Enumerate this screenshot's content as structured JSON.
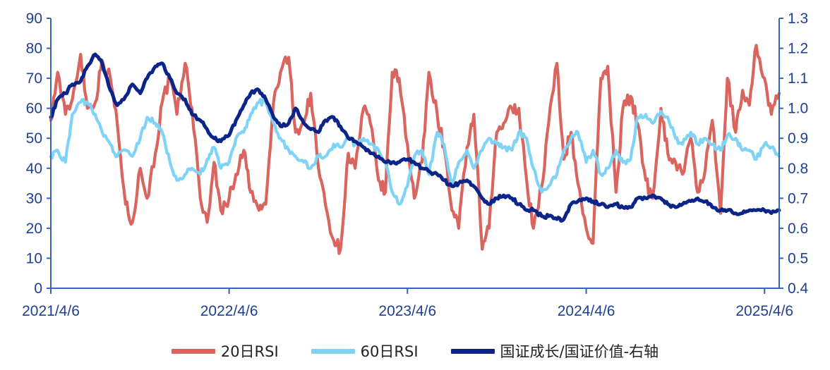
{
  "chart_data": {
    "type": "line",
    "title": "",
    "xlabel": "",
    "ylabel": "",
    "x_ticks": [
      "2021/4/6",
      "2022/4/6",
      "2023/4/6",
      "2024/4/6",
      "2025/4/6"
    ],
    "x_range": [
      "2021-04-06",
      "2025-05-06"
    ],
    "ylim": [
      0,
      90
    ],
    "y_ticks": [
      "0",
      "10",
      "20",
      "30",
      "40",
      "50",
      "60",
      "70",
      "80",
      "90"
    ],
    "y2lim": [
      0.4,
      1.3
    ],
    "y2_ticks": [
      "0.4",
      "0.5",
      "0.6",
      "0.7",
      "0.8",
      "0.9",
      "1.0",
      "1.1",
      "1.2",
      "1.3"
    ],
    "grid": false,
    "legend_position": "bottom",
    "series": [
      {
        "name": "20日RSI",
        "axis": "left",
        "color": "#d9655e",
        "x": [
          "2021-04-06",
          "2021-04-20",
          "2021-05-06",
          "2021-05-20",
          "2021-06-06",
          "2021-06-20",
          "2021-07-06",
          "2021-07-20",
          "2021-08-06",
          "2021-08-20",
          "2021-09-06",
          "2021-09-20",
          "2021-10-06",
          "2021-10-20",
          "2021-11-06",
          "2021-11-20",
          "2021-12-06",
          "2021-12-20",
          "2022-01-06",
          "2022-01-20",
          "2022-02-06",
          "2022-02-20",
          "2022-03-06",
          "2022-03-20",
          "2022-04-06",
          "2022-04-20",
          "2022-05-06",
          "2022-05-20",
          "2022-06-06",
          "2022-06-20",
          "2022-07-06",
          "2022-07-20",
          "2022-08-06",
          "2022-08-20",
          "2022-09-06",
          "2022-09-20",
          "2022-10-06",
          "2022-10-20",
          "2022-11-06",
          "2022-11-20",
          "2022-12-06",
          "2022-12-20",
          "2023-01-06",
          "2023-01-20",
          "2023-02-06",
          "2023-02-20",
          "2023-03-06",
          "2023-03-20",
          "2023-04-06",
          "2023-04-20",
          "2023-05-06",
          "2023-05-20",
          "2023-06-06",
          "2023-06-20",
          "2023-07-06",
          "2023-07-20",
          "2023-08-06",
          "2023-08-20",
          "2023-09-06",
          "2023-09-20",
          "2023-10-06",
          "2023-10-20",
          "2023-11-06",
          "2023-11-20",
          "2023-12-06",
          "2023-12-20",
          "2024-01-06",
          "2024-01-20",
          "2024-02-06",
          "2024-02-20",
          "2024-03-06",
          "2024-03-20",
          "2024-04-06",
          "2024-04-20",
          "2024-05-06",
          "2024-05-20",
          "2024-06-06",
          "2024-06-20",
          "2024-07-06",
          "2024-07-20",
          "2024-08-06",
          "2024-08-20",
          "2024-09-06",
          "2024-09-20",
          "2024-10-06",
          "2024-10-20",
          "2024-11-06",
          "2024-11-20",
          "2024-12-06",
          "2024-12-20",
          "2025-01-06",
          "2025-01-20",
          "2025-02-06",
          "2025-02-20",
          "2025-03-06",
          "2025-03-20",
          "2025-04-06",
          "2025-04-20",
          "2025-05-06"
        ],
        "values": [
          56,
          72,
          58,
          63,
          78,
          60,
          62,
          76,
          70,
          55,
          28,
          22,
          40,
          30,
          45,
          62,
          70,
          58,
          75,
          60,
          30,
          22,
          42,
          26,
          30,
          38,
          46,
          32,
          26,
          28,
          62,
          72,
          77,
          52,
          55,
          65,
          40,
          28,
          16,
          13,
          45,
          40,
          60,
          55,
          36,
          32,
          72,
          70,
          48,
          30,
          42,
          72,
          58,
          47,
          26,
          20,
          47,
          58,
          13,
          20,
          52,
          55,
          60,
          60,
          36,
          20,
          34,
          55,
          75,
          43,
          52,
          35,
          20,
          15,
          70,
          74,
          32,
          60,
          64,
          55,
          36,
          30,
          60,
          45,
          42,
          38,
          50,
          32,
          40,
          56,
          25,
          70,
          52,
          66,
          61,
          81,
          70,
          58,
          65
        ]
      },
      {
        "name": "60日RSI",
        "axis": "left",
        "color": "#7fd3f7",
        "x": [
          "2021-04-06",
          "2021-04-20",
          "2021-05-06",
          "2021-05-20",
          "2021-06-06",
          "2021-06-20",
          "2021-07-06",
          "2021-07-20",
          "2021-08-06",
          "2021-08-20",
          "2021-09-06",
          "2021-09-20",
          "2021-10-06",
          "2021-10-20",
          "2021-11-06",
          "2021-11-20",
          "2021-12-06",
          "2021-12-20",
          "2022-01-06",
          "2022-01-20",
          "2022-02-06",
          "2022-02-20",
          "2022-03-06",
          "2022-03-20",
          "2022-04-06",
          "2022-04-20",
          "2022-05-06",
          "2022-05-20",
          "2022-06-06",
          "2022-06-20",
          "2022-07-06",
          "2022-07-20",
          "2022-08-06",
          "2022-08-20",
          "2022-09-06",
          "2022-09-20",
          "2022-10-06",
          "2022-10-20",
          "2022-11-06",
          "2022-11-20",
          "2022-12-06",
          "2022-12-20",
          "2023-01-06",
          "2023-01-20",
          "2023-02-06",
          "2023-02-20",
          "2023-03-06",
          "2023-03-20",
          "2023-04-06",
          "2023-04-20",
          "2023-05-06",
          "2023-05-20",
          "2023-06-06",
          "2023-06-20",
          "2023-07-06",
          "2023-07-20",
          "2023-08-06",
          "2023-08-20",
          "2023-09-06",
          "2023-09-20",
          "2023-10-06",
          "2023-10-20",
          "2023-11-06",
          "2023-11-20",
          "2023-12-06",
          "2023-12-20",
          "2024-01-06",
          "2024-01-20",
          "2024-02-06",
          "2024-02-20",
          "2024-03-06",
          "2024-03-20",
          "2024-04-06",
          "2024-04-20",
          "2024-05-06",
          "2024-05-20",
          "2024-06-06",
          "2024-06-20",
          "2024-07-06",
          "2024-07-20",
          "2024-08-06",
          "2024-08-20",
          "2024-09-06",
          "2024-09-20",
          "2024-10-06",
          "2024-10-20",
          "2024-11-06",
          "2024-11-20",
          "2024-12-06",
          "2024-12-20",
          "2025-01-06",
          "2025-01-20",
          "2025-02-06",
          "2025-02-20",
          "2025-03-06",
          "2025-03-20",
          "2025-04-06",
          "2025-04-20",
          "2025-05-06"
        ],
        "values": [
          44,
          46,
          42,
          58,
          62,
          62,
          58,
          52,
          48,
          44,
          46,
          44,
          50,
          57,
          55,
          52,
          42,
          36,
          38,
          40,
          38,
          43,
          47,
          40,
          42,
          50,
          52,
          58,
          62,
          62,
          55,
          50,
          46,
          44,
          42,
          40,
          44,
          44,
          48,
          47,
          50,
          48,
          50,
          48,
          46,
          42,
          32,
          28,
          34,
          44,
          46,
          38,
          52,
          48,
          34,
          42,
          46,
          40,
          46,
          50,
          48,
          47,
          46,
          52,
          50,
          40,
          32,
          34,
          38,
          46,
          50,
          52,
          42,
          46,
          38,
          40,
          46,
          42,
          43,
          57,
          58,
          55,
          59,
          57,
          50,
          48,
          52,
          48,
          50,
          48,
          46,
          51,
          50,
          46,
          46,
          43,
          48,
          47,
          44
        ]
      },
      {
        "name": "国证成长/国证价值-右轴",
        "axis": "right",
        "color": "#0a2489",
        "x": [
          "2021-04-06",
          "2021-04-20",
          "2021-05-06",
          "2021-05-20",
          "2021-06-06",
          "2021-06-20",
          "2021-07-06",
          "2021-07-20",
          "2021-08-06",
          "2021-08-20",
          "2021-09-06",
          "2021-09-20",
          "2021-10-06",
          "2021-10-20",
          "2021-11-06",
          "2021-11-20",
          "2021-12-06",
          "2021-12-20",
          "2022-01-06",
          "2022-01-20",
          "2022-02-06",
          "2022-02-20",
          "2022-03-06",
          "2022-03-20",
          "2022-04-06",
          "2022-04-20",
          "2022-05-06",
          "2022-05-20",
          "2022-06-06",
          "2022-06-20",
          "2022-07-06",
          "2022-07-20",
          "2022-08-06",
          "2022-08-20",
          "2022-09-06",
          "2022-09-20",
          "2022-10-06",
          "2022-10-20",
          "2022-11-06",
          "2022-11-20",
          "2022-12-06",
          "2022-12-20",
          "2023-01-06",
          "2023-01-20",
          "2023-02-06",
          "2023-02-20",
          "2023-03-06",
          "2023-03-20",
          "2023-04-06",
          "2023-04-20",
          "2023-05-06",
          "2023-05-20",
          "2023-06-06",
          "2023-06-20",
          "2023-07-06",
          "2023-07-20",
          "2023-08-06",
          "2023-08-20",
          "2023-09-06",
          "2023-09-20",
          "2023-10-06",
          "2023-10-20",
          "2023-11-06",
          "2023-11-20",
          "2023-12-06",
          "2023-12-20",
          "2024-01-06",
          "2024-01-20",
          "2024-02-06",
          "2024-02-20",
          "2024-03-06",
          "2024-03-20",
          "2024-04-06",
          "2024-04-20",
          "2024-05-06",
          "2024-05-20",
          "2024-06-06",
          "2024-06-20",
          "2024-07-06",
          "2024-07-20",
          "2024-08-06",
          "2024-08-20",
          "2024-09-06",
          "2024-09-20",
          "2024-10-06",
          "2024-10-20",
          "2024-11-06",
          "2024-11-20",
          "2024-12-06",
          "2024-12-20",
          "2025-01-06",
          "2025-01-20",
          "2025-02-06",
          "2025-02-20",
          "2025-03-06",
          "2025-03-20",
          "2025-04-06",
          "2025-04-20",
          "2025-05-06"
        ],
        "values": [
          0.97,
          1.03,
          1.05,
          1.08,
          1.09,
          1.14,
          1.18,
          1.15,
          1.06,
          1.01,
          1.04,
          1.08,
          1.05,
          1.1,
          1.14,
          1.15,
          1.1,
          1.05,
          1.03,
          0.98,
          0.96,
          0.93,
          0.9,
          0.89,
          0.91,
          0.96,
          1.01,
          1.05,
          1.06,
          1.03,
          0.97,
          0.94,
          0.95,
          1.0,
          0.95,
          0.93,
          0.92,
          0.96,
          0.97,
          0.94,
          0.9,
          0.89,
          0.87,
          0.85,
          0.84,
          0.82,
          0.82,
          0.82,
          0.83,
          0.82,
          0.8,
          0.79,
          0.78,
          0.76,
          0.74,
          0.75,
          0.76,
          0.74,
          0.7,
          0.68,
          0.7,
          0.71,
          0.7,
          0.68,
          0.66,
          0.66,
          0.64,
          0.64,
          0.63,
          0.63,
          0.68,
          0.69,
          0.7,
          0.69,
          0.68,
          0.67,
          0.68,
          0.67,
          0.67,
          0.7,
          0.7,
          0.71,
          0.7,
          0.68,
          0.67,
          0.68,
          0.69,
          0.7,
          0.69,
          0.67,
          0.66,
          0.66,
          0.65,
          0.65,
          0.66,
          0.66,
          0.66,
          0.65,
          0.66
        ]
      }
    ]
  }
}
